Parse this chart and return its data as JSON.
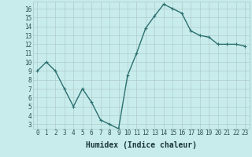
{
  "xlabel": "Humidex (Indice chaleur)",
  "ylabel": "",
  "x": [
    0,
    1,
    2,
    3,
    4,
    5,
    6,
    7,
    8,
    9,
    10,
    11,
    12,
    13,
    14,
    15,
    16,
    17,
    18,
    19,
    20,
    21,
    22,
    23
  ],
  "y": [
    9.0,
    10.0,
    9.0,
    7.0,
    5.0,
    7.0,
    5.5,
    3.5,
    3.0,
    2.5,
    8.5,
    11.0,
    13.8,
    15.2,
    16.5,
    16.0,
    15.5,
    13.5,
    13.0,
    12.8,
    12.0,
    12.0,
    12.0,
    11.8
  ],
  "line_color": "#2d7070",
  "marker_color": "#2d7070",
  "bg_color": "#c8ecec",
  "grid_color": "#b0cccc",
  "tick_label_color": "#2d5050",
  "axis_label_color": "#1a3535",
  "ylim": [
    2.5,
    16.8
  ],
  "xlim": [
    -0.5,
    23.5
  ],
  "yticks": [
    3,
    4,
    5,
    6,
    7,
    8,
    9,
    10,
    11,
    12,
    13,
    14,
    15,
    16
  ],
  "xticks": [
    0,
    1,
    2,
    3,
    4,
    5,
    6,
    7,
    8,
    9,
    10,
    11,
    12,
    13,
    14,
    15,
    16,
    17,
    18,
    19,
    20,
    21,
    22,
    23
  ],
  "xtick_labels": [
    "0",
    "1",
    "2",
    "3",
    "4",
    "5",
    "6",
    "7",
    "8",
    "9",
    "10",
    "11",
    "12",
    "13",
    "14",
    "15",
    "16",
    "17",
    "18",
    "19",
    "20",
    "21",
    "22",
    "23"
  ],
  "ytick_labels": [
    "3",
    "4",
    "5",
    "6",
    "7",
    "8",
    "9",
    "10",
    "11",
    "12",
    "13",
    "14",
    "15",
    "16"
  ],
  "xlabel_fontsize": 7,
  "tick_fontsize": 5.5,
  "line_width": 1.0,
  "marker_size": 2.2
}
